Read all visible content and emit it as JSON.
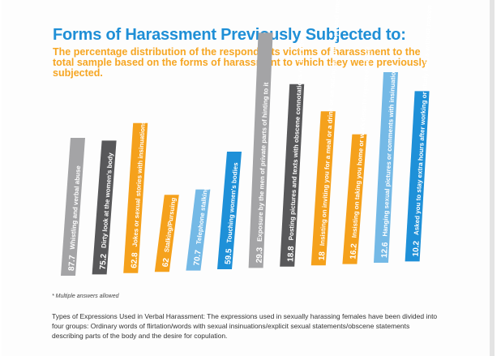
{
  "title": "Forms of Harassment Previously Subjected to:",
  "subtitle": "The percentage distribution of the respondents victims of harassment to the total sample based on the forms of harassment to which they were previously subjected.",
  "note": "* Multiple answers allowed",
  "description": "Types of Expressions Used in Verbal Harassment: The expressions used in sexually harassing females have been divided into four groups: Ordinary words of flirtation/words with sexual insinuations/explicit sexual statements/obscene statements describing parts of the body and the desire for copulation.",
  "colors": {
    "title": "#1f8fd6",
    "subtitle": "#f6a623",
    "grey_light": "#a4a4a6",
    "grey_dark": "#58585a",
    "orange": "#f5a11c",
    "blue_light": "#74b9e6",
    "blue": "#1e90d8"
  },
  "chart_data": {
    "type": "bar",
    "unit": "%",
    "categories": [
      "Whistling and verbal abuse",
      "Dirty look at the women's body",
      "Jokes or sexual stories with insinuations",
      "Stalking/Pursuing",
      "Telephone stalking",
      "Touching women's bodies",
      "Exposure by the men of private parts of hinting to it",
      "Posting pictures and texts with obscene connotations on the internet",
      "Insisting on inviting you for a meal or a drink or an outing despite repeated refusal",
      "Insisting on taking you home or work despite repeated refusal",
      "Hanging sexual pictures or comments with insinuations",
      "Asked you to stay extra hours after working or study hours without reason"
    ],
    "values": [
      87.7,
      75.2,
      62.8,
      62,
      70.7,
      59.5,
      29.3,
      18.8,
      18,
      16.2,
      12.6,
      10.2
    ],
    "value_labels": [
      "87.7",
      "75.2",
      "62.8",
      "62",
      "70.7",
      "59.5",
      "29.3",
      "18.8",
      "18",
      "16.2",
      "12.6",
      "10.2"
    ],
    "bar_colors": [
      "grey_light",
      "grey_dark",
      "orange",
      "orange",
      "blue_light",
      "blue",
      "grey_light",
      "grey_dark",
      "orange",
      "orange",
      "blue_light",
      "blue"
    ]
  }
}
